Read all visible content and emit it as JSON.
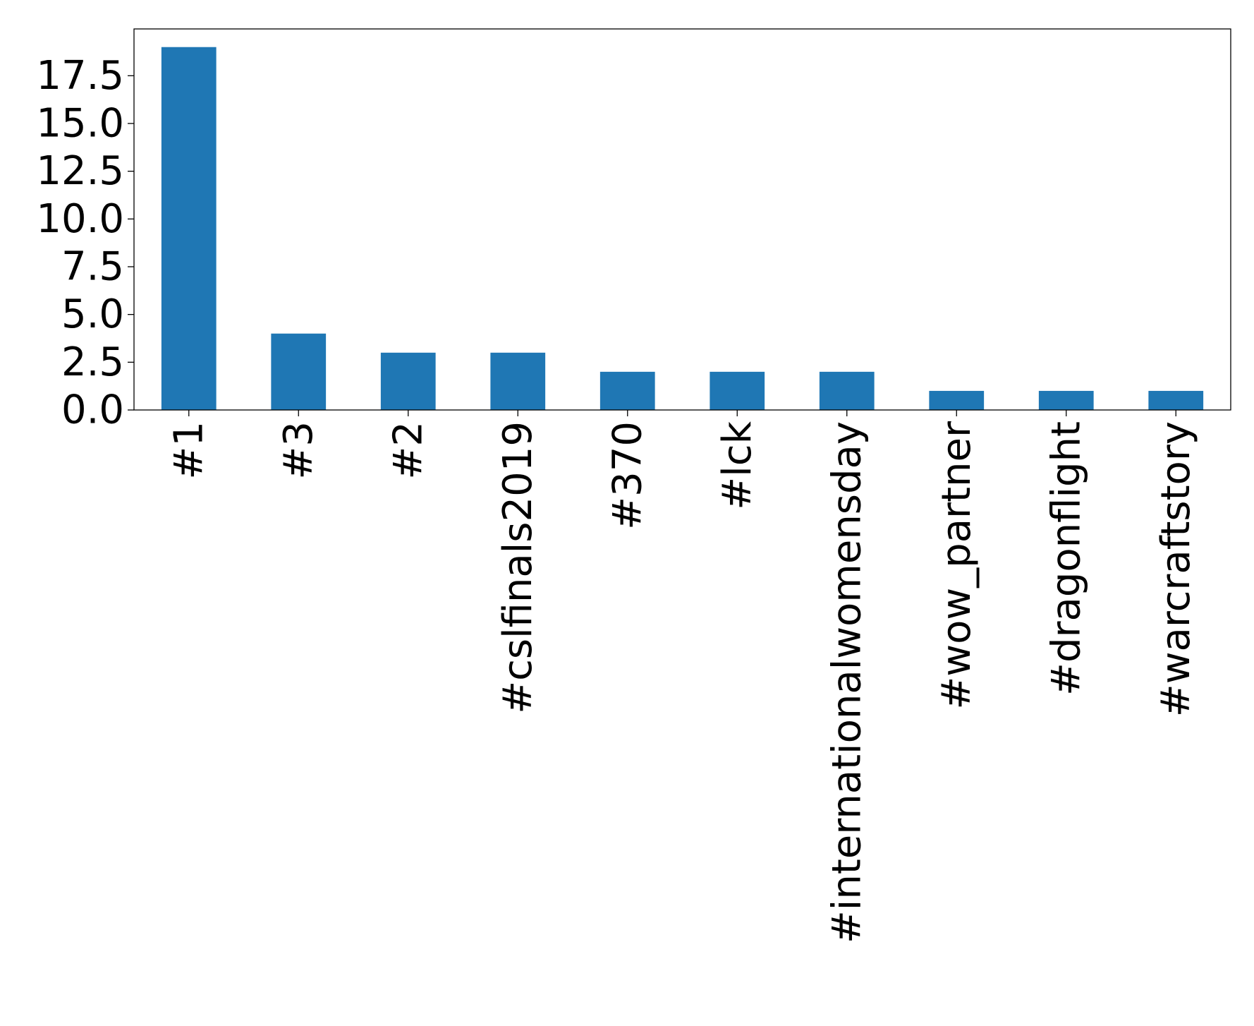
{
  "chart_data": {
    "type": "bar",
    "title": "",
    "xlabel": "",
    "ylabel": "",
    "categories": [
      "#1",
      "#3",
      "#2",
      "#cslfinals2019",
      "#370",
      "#lck",
      "#internationalwomensday",
      "#wow_partner",
      "#dragonflight",
      "#warcraftstory"
    ],
    "values": [
      19,
      4,
      3,
      3,
      2,
      2,
      2,
      1,
      1,
      1
    ],
    "ylim": [
      0,
      19.95
    ],
    "yticks": [
      0.0,
      2.5,
      5.0,
      7.5,
      10.0,
      12.5,
      15.0,
      17.5
    ],
    "ytick_labels": [
      "0.0",
      "2.5",
      "5.0",
      "7.5",
      "10.0",
      "12.5",
      "15.0",
      "17.5"
    ],
    "bar_color": "#1f77b4",
    "grid": false,
    "legend": "none"
  }
}
